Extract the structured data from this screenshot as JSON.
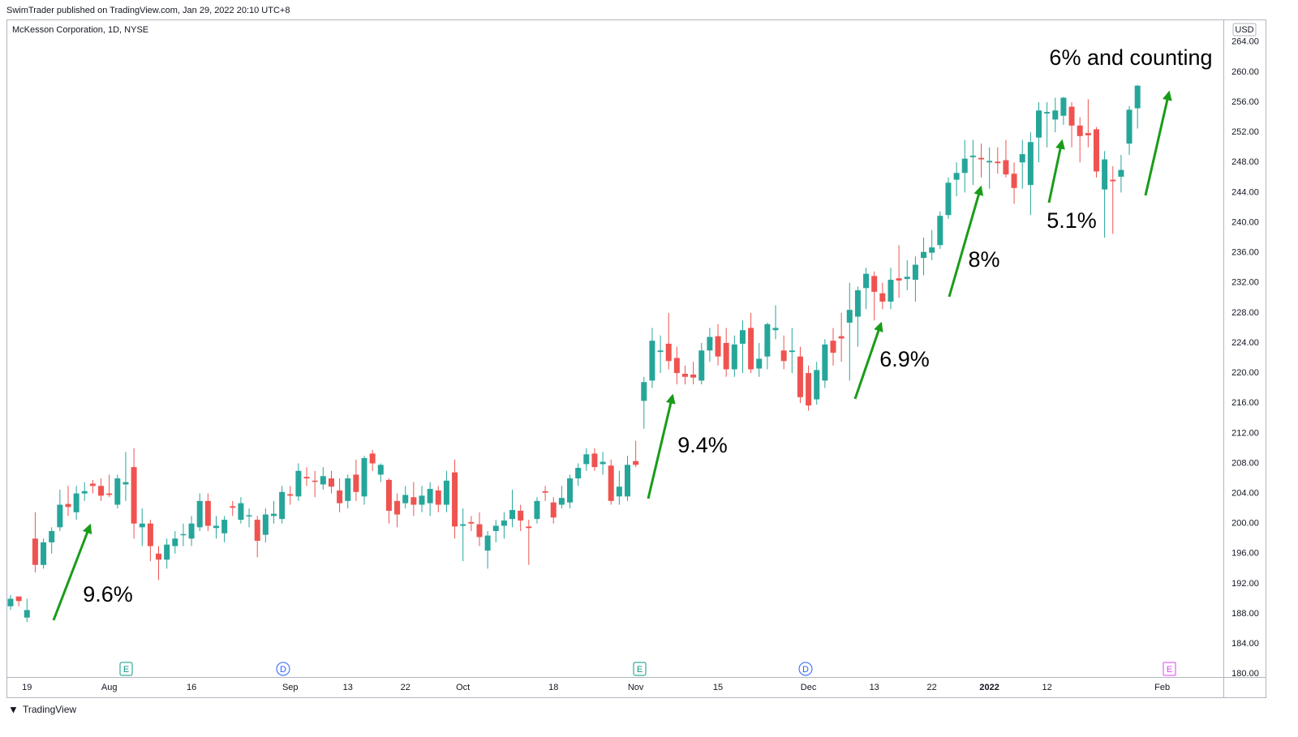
{
  "header": "SwimTrader published on TradingView.com, Jan 29, 2022 20:10 UTC+8",
  "footer": "TradingView",
  "chart_data": {
    "type": "candlestick",
    "title": "McKesson Corporation, 1D, NYSE",
    "currency": "USD",
    "up_color": "#26a69a",
    "down_color": "#ef5350",
    "grid": false,
    "ylim": [
      179.6,
      267
    ],
    "yticks": [
      {
        "value": 180,
        "label": "180.00"
      },
      {
        "value": 184,
        "label": "184.00"
      },
      {
        "value": 188,
        "label": "188.00"
      },
      {
        "value": 192,
        "label": "192.00"
      },
      {
        "value": 196,
        "label": "196.00"
      },
      {
        "value": 200,
        "label": "200.00"
      },
      {
        "value": 204,
        "label": "204.00"
      },
      {
        "value": 208,
        "label": "208.00"
      },
      {
        "value": 212,
        "label": "212.00"
      },
      {
        "value": 216,
        "label": "216.00"
      },
      {
        "value": 220,
        "label": "220.00"
      },
      {
        "value": 224,
        "label": "224.00"
      },
      {
        "value": 228,
        "label": "228.00"
      },
      {
        "value": 232,
        "label": "232.00"
      },
      {
        "value": 236,
        "label": "236.00"
      },
      {
        "value": 240,
        "label": "240.00"
      },
      {
        "value": 244,
        "label": "244.00"
      },
      {
        "value": 248,
        "label": "248.00"
      },
      {
        "value": 252,
        "label": "252.00"
      },
      {
        "value": 256,
        "label": "256.00"
      },
      {
        "value": 260,
        "label": "260.00"
      },
      {
        "value": 264,
        "label": "264.00"
      }
    ],
    "categories": [
      null,
      null,
      "19",
      null,
      null,
      null,
      null,
      null,
      null,
      null,
      null,
      null,
      "Aug",
      null,
      null,
      null,
      null,
      null,
      null,
      null,
      null,
      null,
      "16",
      null,
      null,
      null,
      null,
      null,
      null,
      null,
      null,
      null,
      null,
      null,
      "Sep",
      null,
      null,
      null,
      null,
      null,
      null,
      "13",
      null,
      null,
      null,
      null,
      null,
      null,
      "22",
      null,
      null,
      null,
      null,
      null,
      null,
      "Oct",
      null,
      null,
      null,
      null,
      null,
      null,
      null,
      null,
      null,
      null,
      "18",
      null,
      null,
      null,
      null,
      null,
      null,
      null,
      null,
      null,
      "Nov",
      null,
      null,
      null,
      null,
      null,
      null,
      null,
      null,
      null,
      "15",
      null,
      null,
      null,
      null,
      null,
      null,
      null,
      null,
      null,
      null,
      "Dec",
      null,
      null,
      null,
      null,
      null,
      null,
      null,
      "13",
      null,
      null,
      null,
      null,
      null,
      null,
      "22",
      null,
      null,
      null,
      null,
      null,
      null,
      "2022",
      null,
      null,
      null,
      null,
      null,
      null,
      "12",
      null,
      null,
      null,
      null,
      null,
      null,
      null,
      null,
      null,
      null,
      null,
      null,
      null,
      "Feb"
    ],
    "open": [
      189,
      190.3,
      187.5,
      198,
      194.5,
      197.5,
      199.5,
      202.6,
      201.5,
      204,
      205.3,
      205,
      204,
      202.5,
      205.2,
      207.5,
      199.5,
      200,
      196,
      195.2,
      197,
      198.5,
      198,
      199.5,
      203,
      199.4,
      198.7,
      202.3,
      200.5,
      201,
      200.5,
      198.5,
      201,
      200.6,
      203.9,
      203.6,
      206.2,
      205.7,
      205.2,
      206,
      204.4,
      203,
      206.5,
      203.6,
      209.3,
      206.5,
      205.8,
      203,
      202.7,
      203.5,
      202.5,
      202.7,
      204.4,
      202.5,
      206.8,
      199.7,
      200.2,
      199.9,
      196.4,
      199,
      199.7,
      200.6,
      201.7,
      199.6,
      200.6,
      204.3,
      202.8,
      202.5,
      202.8,
      206,
      207.9,
      209.3,
      207.9,
      207.7,
      203.6,
      203.6,
      208.3,
      216.3,
      219,
      222.8,
      223.9,
      222,
      219.9,
      219.8,
      219,
      223,
      224.9,
      224,
      220.5,
      223.9,
      226,
      220.6,
      222.2,
      225.7,
      223,
      222.8,
      222.2,
      220,
      216.5,
      219,
      224.3,
      224.9,
      226.7,
      227.5,
      231.3,
      232.9,
      230.6,
      229.5,
      232.6,
      232.5,
      232.4,
      235.3,
      236,
      237,
      241,
      245.7,
      246.6,
      248.7,
      248.6,
      248,
      248.1,
      248.3,
      246.5,
      248,
      245,
      251.3,
      254.5,
      253.7,
      254.2,
      255.4,
      252.9,
      251.9,
      252.4,
      244.4,
      245.7,
      246.1,
      250.5,
      255.2,
      null,
      null,
      null
    ],
    "high": [
      190.5,
      190.3,
      190,
      201.5,
      198,
      199.5,
      204.5,
      205,
      205,
      205.5,
      205.8,
      206,
      206.5,
      206.5,
      209.5,
      210,
      202,
      200.5,
      197,
      198,
      199,
      200,
      201,
      204,
      204,
      201,
      201,
      203,
      203.5,
      202,
      201,
      202,
      203,
      205,
      205,
      208,
      207.5,
      207,
      207.5,
      207,
      206,
      206.5,
      208.5,
      209,
      209.8,
      208,
      206,
      204,
      205,
      205.5,
      205,
      205.5,
      205,
      207,
      208.5,
      202,
      201,
      201.5,
      199,
      200.5,
      201.5,
      204.5,
      202.5,
      200.5,
      203.5,
      205,
      203.5,
      205,
      206.5,
      208,
      210,
      210,
      209.5,
      208.5,
      207,
      209,
      211,
      219.5,
      226,
      225,
      228,
      223.5,
      221,
      221.5,
      224,
      226,
      226.5,
      226,
      225,
      227,
      228,
      224,
      226.7,
      229,
      225,
      226,
      223.5,
      221,
      221.5,
      224.5,
      226,
      228,
      232,
      231.5,
      234,
      233.5,
      232,
      234,
      237,
      235,
      235.5,
      238,
      239,
      241.5,
      246,
      248,
      251,
      251,
      250.5,
      250,
      250,
      251,
      248,
      251,
      252,
      256,
      256,
      256.6,
      256.7,
      256,
      254,
      256.4,
      252.7,
      249.5,
      247.5,
      249,
      255.5,
      258.3,
      null,
      null,
      null
    ],
    "low": [
      188.5,
      189,
      186.9,
      193.5,
      194,
      196,
      199,
      201,
      200.5,
      203,
      204,
      203,
      203.5,
      202,
      203,
      198,
      197,
      195,
      192.5,
      194,
      196,
      197,
      197,
      199,
      199,
      198,
      197.5,
      201,
      200,
      199.5,
      195.5,
      197.5,
      200,
      200,
      202.5,
      203,
      205,
      203.5,
      204.5,
      204,
      201.5,
      202,
      203,
      202.5,
      207,
      205.5,
      200,
      199.5,
      202,
      201,
      201.5,
      201,
      201.5,
      201.5,
      198,
      195,
      199,
      197,
      194,
      197.5,
      198,
      199.5,
      199,
      194.5,
      200,
      203,
      200,
      202,
      202,
      205,
      207,
      207,
      206.5,
      202.5,
      202.5,
      203,
      207.5,
      212.6,
      218,
      220,
      220.5,
      218.5,
      218.5,
      218.5,
      218.5,
      221.5,
      221,
      219.5,
      219.5,
      220,
      220,
      219.5,
      220.5,
      224.5,
      220.5,
      220,
      216,
      215,
      215.8,
      218,
      221,
      221.5,
      219,
      223.5,
      228.5,
      227,
      228.5,
      228.5,
      230,
      231,
      229.5,
      233,
      235,
      236.5,
      240.5,
      243.5,
      244,
      245,
      246,
      244.5,
      246.5,
      246,
      242.5,
      244.5,
      241,
      248,
      250,
      252,
      253,
      250,
      248,
      250,
      246,
      238,
      238.5,
      244,
      249,
      252.5,
      null,
      null,
      null
    ],
    "close": [
      190,
      189.7,
      188.5,
      194.5,
      197.5,
      199,
      202.5,
      202.2,
      204,
      204.3,
      205,
      203.7,
      203.8,
      206,
      205.5,
      200,
      200,
      197,
      195.2,
      197.2,
      198,
      198.6,
      200,
      203,
      199.7,
      199.7,
      200.5,
      202.1,
      202.7,
      201.1,
      197.7,
      201.2,
      201.3,
      204.2,
      203.7,
      207,
      206,
      205.6,
      206.3,
      204.9,
      202.7,
      206,
      204.2,
      208.7,
      208,
      207.8,
      201.7,
      201.2,
      203.8,
      202.5,
      203.7,
      204.6,
      202.5,
      205.7,
      199.6,
      199.9,
      200,
      198.2,
      198.4,
      199.7,
      200.4,
      201.8,
      200.4,
      199.4,
      203,
      204.1,
      200.8,
      203.4,
      206,
      207.4,
      209.2,
      207.5,
      208.2,
      203,
      204.9,
      207.8,
      207.8,
      218.8,
      224.3,
      223,
      221.6,
      220,
      219.5,
      219.4,
      223,
      224.8,
      222.2,
      220.5,
      223.8,
      225.7,
      220.5,
      221.9,
      226.5,
      226,
      221.6,
      223,
      216.8,
      215.7,
      220.4,
      223.8,
      222.7,
      224.6,
      228.4,
      231,
      233.2,
      230.8,
      229.5,
      232.4,
      232.3,
      232.8,
      234.4,
      236.1,
      236.7,
      240.9,
      245.3,
      246.6,
      248.5,
      248.9,
      248.4,
      248.2,
      247.9,
      246.4,
      244.6,
      249.1,
      250.7,
      254.9,
      254.7,
      254.9,
      256.6,
      252.9,
      251.5,
      251.6,
      246.8,
      248.4,
      245.5,
      247,
      255,
      258.2,
      null,
      null,
      null
    ],
    "events": [
      "E",
      "D",
      "E",
      "D",
      "E"
    ],
    "annotations": [
      "9.6%",
      "9.4%",
      "6.9%",
      "8%",
      "5.1%",
      "6% and counting"
    ]
  }
}
